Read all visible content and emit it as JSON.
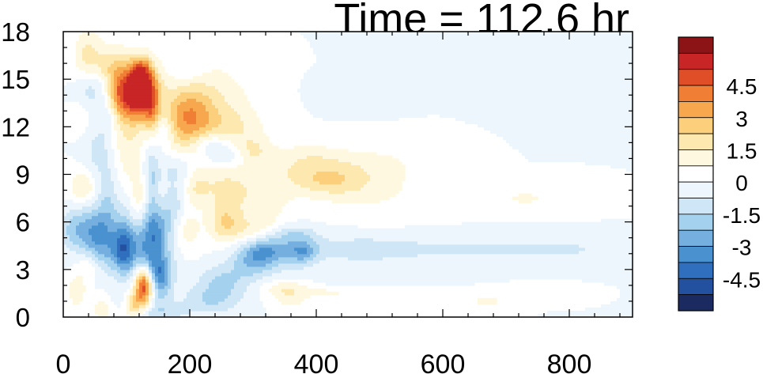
{
  "chart_data": {
    "type": "heatmap",
    "title": "Time = 112.6 hr",
    "xlabel": "",
    "ylabel": "",
    "xlim": [
      0,
      900
    ],
    "ylim": [
      0,
      18
    ],
    "x_ticks": [
      {
        "value": 0,
        "label": "0"
      },
      {
        "value": 200,
        "label": "200"
      },
      {
        "value": 400,
        "label": "400"
      },
      {
        "value": 600,
        "label": "600"
      },
      {
        "value": 800,
        "label": "800"
      }
    ],
    "y_ticks": [
      {
        "value": 0,
        "label": "0"
      },
      {
        "value": 3,
        "label": "3"
      },
      {
        "value": 6,
        "label": "6"
      },
      {
        "value": 9,
        "label": "9"
      },
      {
        "value": 12,
        "label": "12"
      },
      {
        "value": 15,
        "label": "15"
      },
      {
        "value": 18,
        "label": "18"
      }
    ],
    "colorbar": {
      "levels": [
        -5.25,
        -4.5,
        -3.75,
        -3,
        -2.25,
        -1.5,
        -0.75,
        0,
        0.75,
        1.5,
        2.25,
        3,
        3.75,
        4.5,
        5.25
      ],
      "colors": [
        "#1b2a61",
        "#2450a0",
        "#2f6fbd",
        "#4a91cf",
        "#74afdf",
        "#a4d1ee",
        "#cfe6f6",
        "#edf6fc",
        "#ffffff",
        "#fff8e0",
        "#fde8b0",
        "#fbcf7c",
        "#f7a84e",
        "#f07e34",
        "#e04e28",
        "#c82526",
        "#8c1416"
      ],
      "labels": [
        {
          "value": 4.5,
          "label": "4.5"
        },
        {
          "value": 3,
          "label": "3"
        },
        {
          "value": 1.5,
          "label": "1.5"
        },
        {
          "value": 0,
          "label": "0"
        },
        {
          "value": -1.5,
          "label": "-1.5"
        },
        {
          "value": -3,
          "label": "-3"
        },
        {
          "value": -4.5,
          "label": "-4.5"
        }
      ]
    },
    "features": [
      {
        "x": 115,
        "y": 14.3,
        "sx": 22,
        "sy": 1.3,
        "value": 7
      },
      {
        "x": 125,
        "y": 15.5,
        "sx": 10,
        "sy": 0.6,
        "value": 2
      },
      {
        "x": 140,
        "y": 13.2,
        "sx": 8,
        "sy": 1.3,
        "value": 2
      },
      {
        "x": 195,
        "y": 12.5,
        "sx": 28,
        "sy": 1.4,
        "value": 3.0
      },
      {
        "x": 235,
        "y": 13.5,
        "sx": 45,
        "sy": 1.8,
        "value": 1.4
      },
      {
        "x": 270,
        "y": 12.0,
        "sx": 35,
        "sy": 0.8,
        "value": 1.0
      },
      {
        "x": 40,
        "y": 16.5,
        "sx": 16,
        "sy": 1.2,
        "value": 1.8
      },
      {
        "x": 68,
        "y": 15.8,
        "sx": 12,
        "sy": 0.8,
        "value": 1.2
      },
      {
        "x": 85,
        "y": 14.0,
        "sx": 10,
        "sy": 2.0,
        "value": 1.4
      },
      {
        "x": 105,
        "y": 10.5,
        "sx": 14,
        "sy": 1.5,
        "value": 1.2
      },
      {
        "x": 45,
        "y": 14.5,
        "sx": 16,
        "sy": 0.8,
        "value": -1.3
      },
      {
        "x": 75,
        "y": 12.5,
        "sx": 12,
        "sy": 0.7,
        "value": -1.0
      },
      {
        "x": 160,
        "y": 11.8,
        "sx": 10,
        "sy": 0.8,
        "value": -1.2
      },
      {
        "x": 140,
        "y": 8.5,
        "sx": 8,
        "sy": 2.0,
        "value": -1.5
      },
      {
        "x": 180,
        "y": 9.3,
        "sx": 22,
        "sy": 0.7,
        "value": -1.0
      },
      {
        "x": 55,
        "y": 10.5,
        "sx": 15,
        "sy": 1.2,
        "value": -1.0
      },
      {
        "x": 50,
        "y": 5.5,
        "sx": 20,
        "sy": 1.1,
        "value": -2.8
      },
      {
        "x": 15,
        "y": 5.5,
        "sx": 14,
        "sy": 0.9,
        "value": -1.5
      },
      {
        "x": 95,
        "y": 5.0,
        "sx": 14,
        "sy": 1.5,
        "value": -1.6
      },
      {
        "x": 95,
        "y": 4.2,
        "sx": 14,
        "sy": 1.0,
        "value": -2.6
      },
      {
        "x": 140,
        "y": 4.2,
        "sx": 22,
        "sy": 1.2,
        "value": -3.0
      },
      {
        "x": 150,
        "y": 5.8,
        "sx": 18,
        "sy": 0.9,
        "value": -1.8
      },
      {
        "x": 150,
        "y": 2.8,
        "sx": 15,
        "sy": 0.7,
        "value": -2.0
      },
      {
        "x": 60,
        "y": 4.0,
        "sx": 15,
        "sy": 1.0,
        "value": -1.2
      },
      {
        "x": 70,
        "y": 7.5,
        "sx": 10,
        "sy": 1.5,
        "value": -1.2
      },
      {
        "x": 175,
        "y": 7.0,
        "sx": 12,
        "sy": 1.0,
        "value": -1.3
      },
      {
        "x": 230,
        "y": 1.0,
        "sx": 35,
        "sy": 0.6,
        "value": -1.2
      },
      {
        "x": 70,
        "y": 1.2,
        "sx": 25,
        "sy": 0.6,
        "value": -1.0
      },
      {
        "x": 150,
        "y": 0.3,
        "sx": 30,
        "sy": 0.4,
        "value": -1.2
      },
      {
        "x": 250,
        "y": 2.2,
        "sx": 28,
        "sy": 0.8,
        "value": -1.6
      },
      {
        "x": 300,
        "y": 3.6,
        "sx": 25,
        "sy": 0.8,
        "value": -2.2
      },
      {
        "x": 320,
        "y": 4.3,
        "sx": 20,
        "sy": 0.6,
        "value": -1.8
      },
      {
        "x": 360,
        "y": 4.2,
        "sx": 25,
        "sy": 0.9,
        "value": -1.4
      },
      {
        "x": 380,
        "y": 4.2,
        "sx": 15,
        "sy": 0.5,
        "value": -1.6
      },
      {
        "x": 460,
        "y": 4.3,
        "sx": 70,
        "sy": 0.7,
        "value": -0.9
      },
      {
        "x": 630,
        "y": 4.3,
        "sx": 120,
        "sy": 0.6,
        "value": -0.7
      },
      {
        "x": 800,
        "y": 4.3,
        "sx": 80,
        "sy": 0.6,
        "value": -0.6
      },
      {
        "x": 360,
        "y": 5.3,
        "sx": 30,
        "sy": 0.4,
        "value": -0.9
      },
      {
        "x": 22,
        "y": 1.6,
        "sx": 10,
        "sy": 0.7,
        "value": 1.6
      },
      {
        "x": 42,
        "y": 3.2,
        "sx": 12,
        "sy": 0.6,
        "value": 1.1
      },
      {
        "x": 62,
        "y": 0.8,
        "sx": 14,
        "sy": 0.7,
        "value": 1.8
      },
      {
        "x": 112,
        "y": 0.8,
        "sx": 12,
        "sy": 0.6,
        "value": 2.6
      },
      {
        "x": 128,
        "y": 2.1,
        "sx": 10,
        "sy": 0.8,
        "value": 5.5
      },
      {
        "x": 30,
        "y": 8.2,
        "sx": 14,
        "sy": 0.7,
        "value": 1.6
      },
      {
        "x": 120,
        "y": 7.5,
        "sx": 10,
        "sy": 1.0,
        "value": 1.1
      },
      {
        "x": 190,
        "y": 5.5,
        "sx": 20,
        "sy": 1.0,
        "value": 1.2
      },
      {
        "x": 210,
        "y": 8.3,
        "sx": 14,
        "sy": 0.8,
        "value": 1.2
      },
      {
        "x": 255,
        "y": 6.0,
        "sx": 18,
        "sy": 0.9,
        "value": 1.9
      },
      {
        "x": 250,
        "y": 8.3,
        "sx": 28,
        "sy": 1.0,
        "value": 1.3
      },
      {
        "x": 310,
        "y": 7.5,
        "sx": 35,
        "sy": 1.5,
        "value": 1.2
      },
      {
        "x": 300,
        "y": 10.6,
        "sx": 20,
        "sy": 0.6,
        "value": 1.2
      },
      {
        "x": 400,
        "y": 9.3,
        "sx": 50,
        "sy": 0.8,
        "value": 1.3
      },
      {
        "x": 420,
        "y": 8.5,
        "sx": 40,
        "sy": 0.6,
        "value": 1.0
      },
      {
        "x": 480,
        "y": 8.0,
        "sx": 70,
        "sy": 1.2,
        "value": 0.9
      },
      {
        "x": 500,
        "y": 9.8,
        "sx": 55,
        "sy": 0.8,
        "value": 0.6
      },
      {
        "x": 380,
        "y": 10.3,
        "sx": 40,
        "sy": 0.6,
        "value": 0.6
      },
      {
        "x": 730,
        "y": 7.5,
        "sx": 60,
        "sy": 0.6,
        "value": 0.8
      },
      {
        "x": 300,
        "y": 5.5,
        "sx": 28,
        "sy": 0.6,
        "value": 1.0
      },
      {
        "x": 350,
        "y": 1.8,
        "sx": 25,
        "sy": 0.4,
        "value": 1.3
      },
      {
        "x": 360,
        "y": 1.0,
        "sx": 20,
        "sy": 0.4,
        "value": 0.9
      },
      {
        "x": 420,
        "y": 1.6,
        "sx": 40,
        "sy": 0.3,
        "value": 0.8
      },
      {
        "x": 500,
        "y": 1.0,
        "sx": 40,
        "sy": 0.3,
        "value": 0.7
      },
      {
        "x": 670,
        "y": 1.0,
        "sx": 30,
        "sy": 0.3,
        "value": 0.9
      },
      {
        "x": 760,
        "y": 1.5,
        "sx": 30,
        "sy": 0.3,
        "value": 0.7
      },
      {
        "x": 450,
        "y": 2.3,
        "sx": 30,
        "sy": 0.3,
        "value": -0.6
      },
      {
        "x": 470,
        "y": 14.2,
        "sx": 35,
        "sy": 0.6,
        "value": -0.6
      },
      {
        "x": 540,
        "y": 15.0,
        "sx": 25,
        "sy": 0.6,
        "value": -0.6
      },
      {
        "x": 230,
        "y": 11.0,
        "sx": 20,
        "sy": 0.5,
        "value": -1.3
      },
      {
        "x": 255,
        "y": 10.2,
        "sx": 20,
        "sy": 0.5,
        "value": -1.2
      },
      {
        "x": 200,
        "y": 15.5,
        "sx": 18,
        "sy": 0.5,
        "value": -0.7
      },
      {
        "x": 25,
        "y": 12.5,
        "sx": 10,
        "sy": 0.6,
        "value": 0.8
      },
      {
        "x": 155,
        "y": 1.8,
        "sx": 12,
        "sy": 0.8,
        "value": -1.5
      }
    ]
  }
}
